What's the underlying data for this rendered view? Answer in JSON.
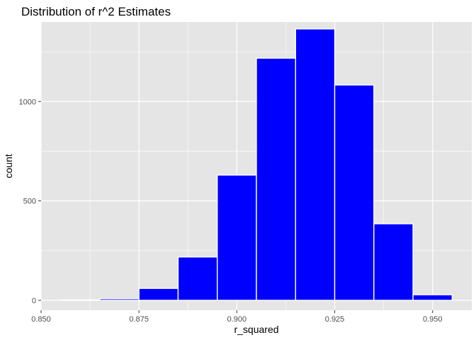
{
  "chart_data": {
    "type": "bar",
    "title": "Distribution of r^2 Estimates",
    "xlabel": "r_squared",
    "ylabel": "count",
    "xlim": [
      0.85,
      0.96
    ],
    "ylim": [
      -50,
      1400
    ],
    "bin_width": 0.01,
    "bins": [
      {
        "center": 0.86,
        "count": 2
      },
      {
        "center": 0.87,
        "count": 8
      },
      {
        "center": 0.88,
        "count": 60
      },
      {
        "center": 0.89,
        "count": 218
      },
      {
        "center": 0.9,
        "count": 630
      },
      {
        "center": 0.91,
        "count": 1218
      },
      {
        "center": 0.92,
        "count": 1365
      },
      {
        "center": 0.93,
        "count": 1083
      },
      {
        "center": 0.94,
        "count": 385
      },
      {
        "center": 0.95,
        "count": 28
      }
    ],
    "x_ticks": [
      {
        "value": 0.85,
        "label": "0.850"
      },
      {
        "value": 0.875,
        "label": "0.875"
      },
      {
        "value": 0.9,
        "label": "0.900"
      },
      {
        "value": 0.925,
        "label": "0.925"
      },
      {
        "value": 0.95,
        "label": "0.950"
      }
    ],
    "y_ticks": [
      {
        "value": 0,
        "label": "0"
      },
      {
        "value": 500,
        "label": "500"
      },
      {
        "value": 1000,
        "label": "1000"
      }
    ],
    "grid": true,
    "legend": "none",
    "colors": {
      "bar_fill": "#0000ff",
      "bar_outline": "#ffffff",
      "panel_background": "#e5e5e5",
      "grid_major": "#ffffff",
      "tick_label": "#4d4d4d"
    }
  }
}
